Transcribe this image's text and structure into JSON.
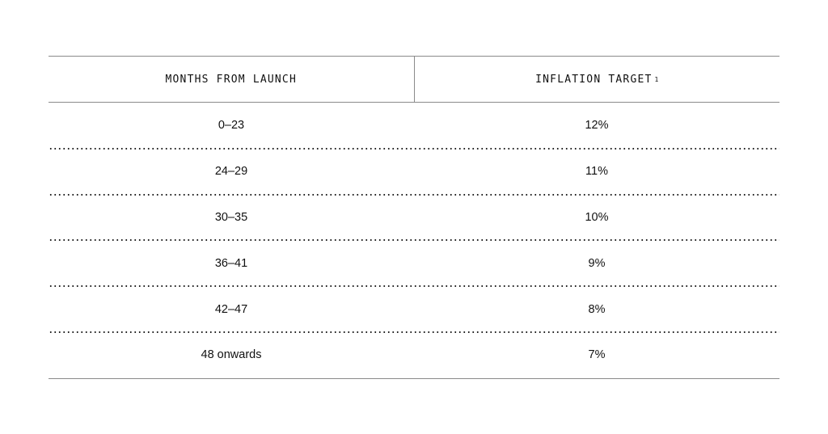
{
  "table": {
    "headers": {
      "months": "MONTHS FROM LAUNCH",
      "inflation": "INFLATION TARGET",
      "inflation_footnote": "1"
    },
    "rows": [
      {
        "months": "0–23",
        "target": "12%"
      },
      {
        "months": "24–29",
        "target": "11%"
      },
      {
        "months": "30–35",
        "target": "10%"
      },
      {
        "months": "36–41",
        "target": "9%"
      },
      {
        "months": "42–47",
        "target": "8%"
      },
      {
        "months": "48 onwards",
        "target": "7%"
      }
    ]
  }
}
